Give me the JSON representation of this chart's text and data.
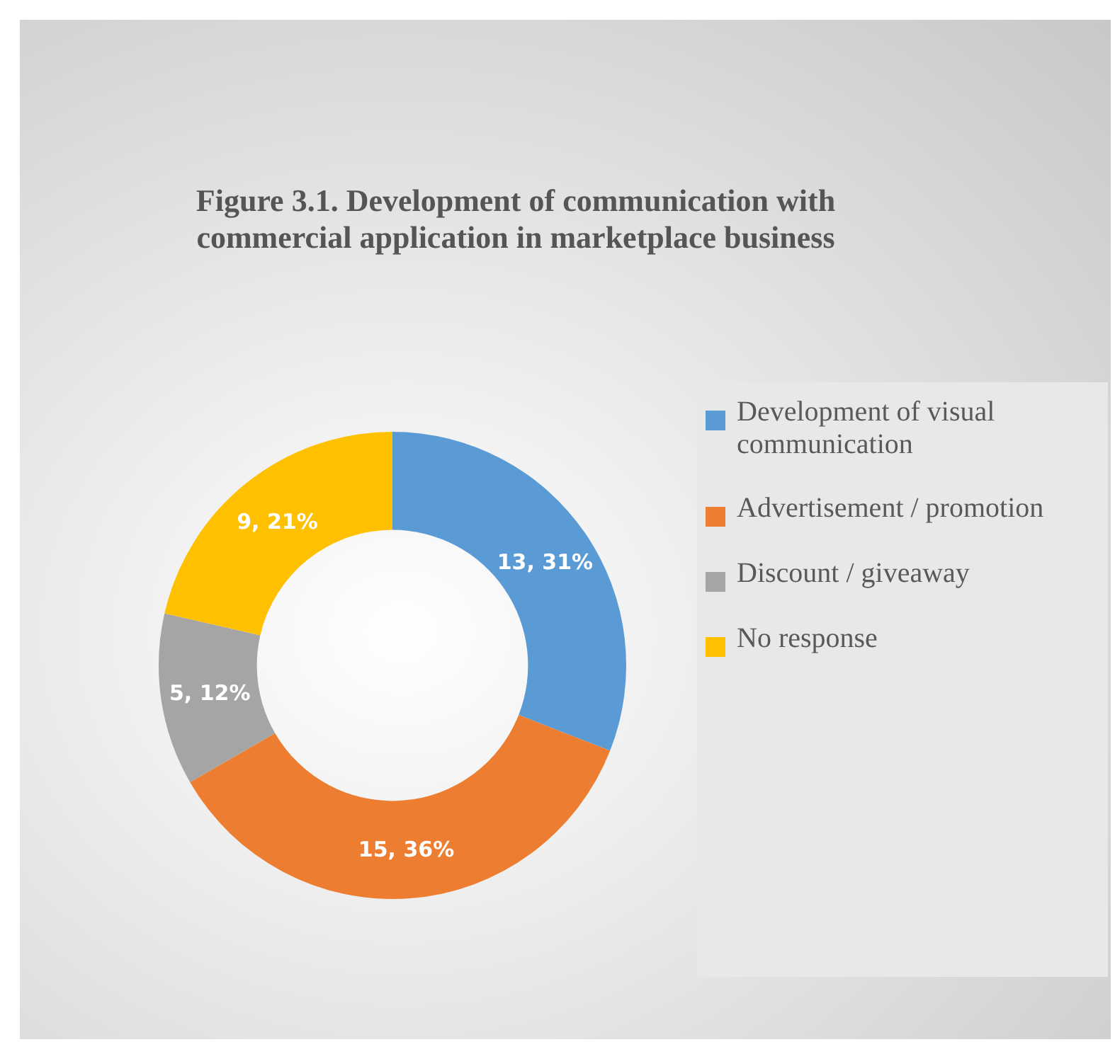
{
  "chart_data": {
    "type": "donut",
    "title": "Figure 3.1. Development of communication with commercial application in marketplace business",
    "categories": [
      "Development of visual communication",
      "Advertisement / promotion",
      "Discount / giveaway",
      "No response"
    ],
    "values": [
      13,
      15,
      5,
      9
    ],
    "colors": [
      "#5b9bd5",
      "#ed7d31",
      "#a5a5a5",
      "#ffc000"
    ],
    "value_labels": [
      "13, 31%",
      "15, 36%",
      "5, 12%",
      "9, 21%"
    ],
    "legend": "right"
  }
}
